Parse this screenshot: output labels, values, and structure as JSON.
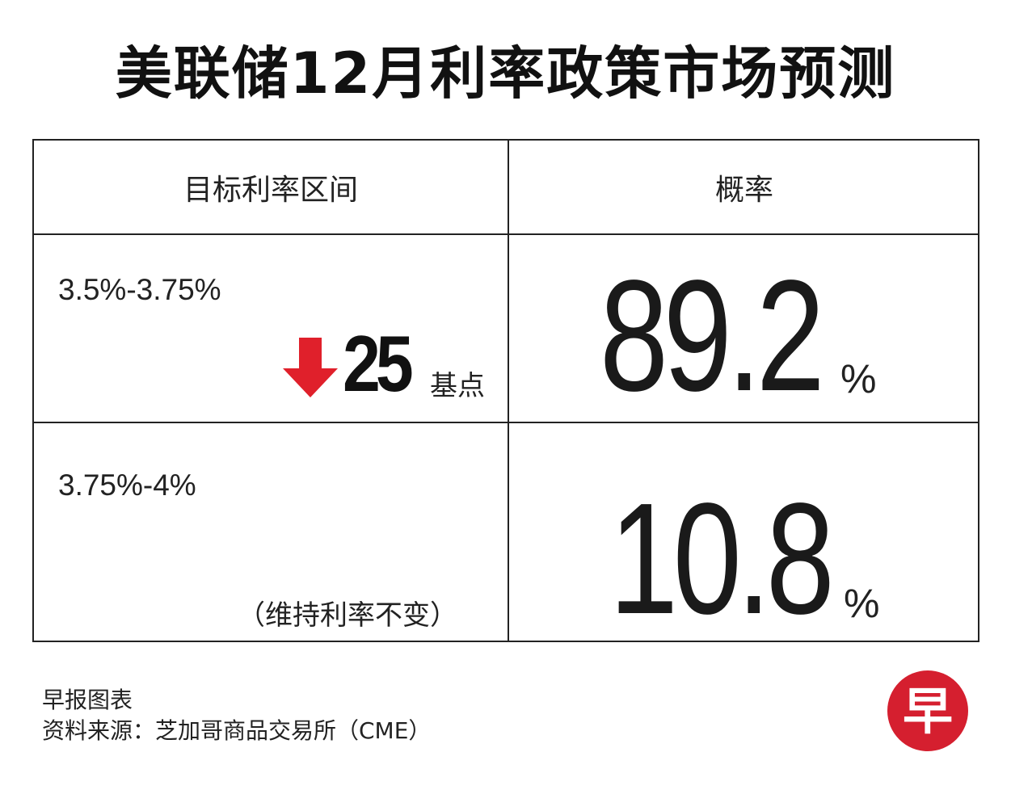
{
  "title": "美联储12月利率政策市场预测",
  "chart_data": {
    "type": "table",
    "title": "美联储12月利率政策市场预测",
    "columns": [
      "目标利率区间",
      "概率"
    ],
    "rows": [
      {
        "range": "3.5%-3.75%",
        "change_value": "25",
        "change_unit": "基点",
        "change_direction": "down",
        "probability": "89.2",
        "probability_unit": "%"
      },
      {
        "range": "3.75%-4%",
        "note": "（维持利率不变）",
        "probability": "10.8",
        "probability_unit": "%"
      }
    ]
  },
  "footer": {
    "credit": "早报图表",
    "source": "资料来源：芝加哥商品交易所（CME）"
  },
  "logo": {
    "icon": "zaobao-logo-icon",
    "char": "早"
  },
  "colors": {
    "arrow": "#e0202b",
    "logo": "#d51f2f"
  }
}
